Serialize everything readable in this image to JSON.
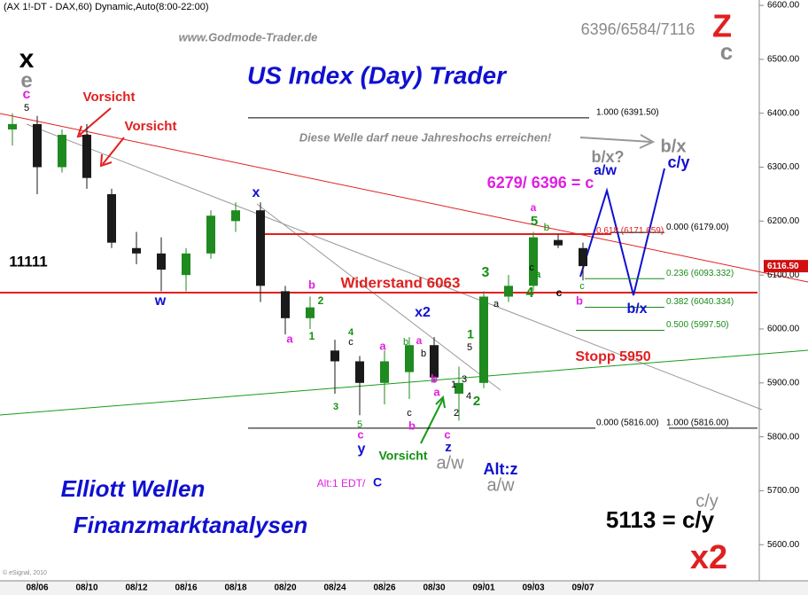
{
  "chart_data": {
    "type": "candlestick",
    "title": "(AX 1!-DT - DAX,60) Dynamic,Auto(8:00-22:00)",
    "x": [
      null,
      "08/06",
      null,
      "08/10",
      null,
      "08/12",
      null,
      "08/16",
      null,
      "08/18",
      null,
      "08/20",
      null,
      "08/24",
      null,
      "08/26",
      null,
      "08/30",
      null,
      "09/01",
      null,
      "09/03",
      null,
      "09/07"
    ],
    "open": [
      6370,
      6380,
      6300,
      6360,
      6250,
      6150,
      6140,
      6100,
      6140,
      6200,
      6220,
      6070,
      6020,
      5960,
      5940,
      5900,
      5920,
      5970,
      5880,
      5900,
      6060,
      6080,
      6165,
      6150
    ],
    "high": [
      6400,
      6395,
      6370,
      6380,
      6260,
      6180,
      6170,
      6150,
      6220,
      6235,
      6235,
      6080,
      6060,
      5980,
      5950,
      5960,
      5985,
      5985,
      5930,
      6070,
      6100,
      6180,
      6175,
      6160
    ],
    "low": [
      6340,
      6250,
      6290,
      6260,
      6150,
      6120,
      6070,
      6070,
      6130,
      6180,
      6050,
      5990,
      6000,
      5880,
      5840,
      5860,
      5870,
      5900,
      5830,
      5890,
      6050,
      6070,
      6150,
      6090
    ],
    "close": [
      6380,
      6300,
      6360,
      6280,
      6160,
      6140,
      6110,
      6140,
      6210,
      6220,
      6080,
      6020,
      6040,
      5940,
      5900,
      5940,
      5970,
      5910,
      5900,
      6060,
      6080,
      6170,
      6155,
      6116.5
    ],
    "up_color": "#1f8a1f",
    "down_color": "#1a1a1a",
    "ylim": [
      5533,
      6610
    ],
    "yticks": [
      {
        "value": 5600,
        "label": "5600.00"
      },
      {
        "value": 5700,
        "label": "5700.00"
      },
      {
        "value": 5800,
        "label": "5800.00"
      },
      {
        "value": 5900,
        "label": "5900.00"
      },
      {
        "value": 6000,
        "label": "6000.00"
      },
      {
        "value": 6100,
        "label": "6100.00"
      },
      {
        "value": 6200,
        "label": "6200.00"
      },
      {
        "value": 6300,
        "label": "6300.00"
      },
      {
        "value": 6400,
        "label": "6400.00"
      },
      {
        "value": 6500,
        "label": "6500.00"
      },
      {
        "value": 6600,
        "label": "6600.00"
      }
    ],
    "last_price": {
      "value": 6116.5,
      "label": "6116.50"
    },
    "fib_levels": [
      {
        "value": 6391.5,
        "label": "1.000 (6391.50)",
        "color": "#000000"
      },
      {
        "value": 6179,
        "label": "0.000 (6179.00)",
        "color": "#000000"
      },
      {
        "value": 6171.659,
        "label": "0.618 (6171.659)",
        "color": "#e02020"
      },
      {
        "value": 6093.332,
        "label": "0.236 (6093.332)",
        "color": "#1a8a1a"
      },
      {
        "value": 6040.334,
        "label": "0.382 (6040.334)",
        "color": "#1a8a1a"
      },
      {
        "value": 5997.5,
        "label": "0.500 (5997.50)",
        "color": "#1a8a1a"
      },
      {
        "value": 5816,
        "label": "0.000 (5816.00)",
        "color": "#000000"
      },
      {
        "value": 5816,
        "label": "1.000 (5816.00)",
        "color": "#000000"
      }
    ],
    "annotations": [
      {
        "text": "x",
        "color": "#000000"
      },
      {
        "text": "e",
        "color": "#8a8a8a"
      },
      {
        "text": "c",
        "color": "#e020e0"
      },
      {
        "text": "5",
        "color": "#000000"
      },
      {
        "text": "Vorsicht",
        "color": "#e02020"
      },
      {
        "text": "Vorsicht",
        "color": "#e02020"
      },
      {
        "text": "Diese Welle darf neue Jahreshochs  erreichen!",
        "color": "#8a8a8a"
      },
      {
        "text": "b/x",
        "color": "#8a8a8a"
      },
      {
        "text": "b/x?",
        "color": "#8a8a8a"
      },
      {
        "text": "a/w",
        "color": "#1010d0"
      },
      {
        "text": "c/y",
        "color": "#1010d0"
      },
      {
        "text": "6279/ 6396 = c",
        "color": "#e020e0"
      },
      {
        "text": "x",
        "color": "#1010d0"
      },
      {
        "text": "11111",
        "color": "#000000"
      },
      {
        "text": "w",
        "color": "#1010d0"
      },
      {
        "text": "Widerstand 6063",
        "color": "#e02020"
      },
      {
        "text": "b",
        "color": "#e020e0"
      },
      {
        "text": "2",
        "color": "#129012"
      },
      {
        "text": "a",
        "color": "#e020e0"
      },
      {
        "text": "1",
        "color": "#129012"
      },
      {
        "text": "3",
        "color": "#129012"
      },
      {
        "text": "4",
        "color": "#129012"
      },
      {
        "text": "5",
        "color": "#129012"
      },
      {
        "text": "a",
        "color": "#e020e0"
      },
      {
        "text": "b",
        "color": "#129012"
      },
      {
        "text": "c",
        "color": "#000000"
      },
      {
        "text": "a",
        "color": "#129012"
      },
      {
        "text": "c",
        "color": "#000000"
      },
      {
        "text": "c",
        "color": "#129012"
      },
      {
        "text": "b",
        "color": "#e020e0"
      },
      {
        "text": "b/x",
        "color": "#1010d0"
      },
      {
        "text": "x2",
        "color": "#1010d0"
      },
      {
        "text": "Stopp 5950",
        "color": "#e02020"
      },
      {
        "text": "a",
        "color": "#000000"
      },
      {
        "text": "4",
        "color": "#129012"
      },
      {
        "text": "c",
        "color": "#000000"
      },
      {
        "text": "a",
        "color": "#e020e0"
      },
      {
        "text": "b",
        "color": "#129012"
      },
      {
        "text": "a",
        "color": "#e020e0"
      },
      {
        "text": "b",
        "color": "#000000"
      },
      {
        "text": "5",
        "color": "#000000"
      },
      {
        "text": "1",
        "color": "#129012"
      },
      {
        "text": "3",
        "color": "#000000"
      },
      {
        "text": "1",
        "color": "#000000"
      },
      {
        "text": "a",
        "color": "#e020e0"
      },
      {
        "text": "b",
        "color": "#e020e0"
      },
      {
        "text": "4",
        "color": "#000000"
      },
      {
        "text": "2",
        "color": "#129012"
      },
      {
        "text": "3",
        "color": "#129012"
      },
      {
        "text": "c",
        "color": "#000000"
      },
      {
        "text": "b",
        "color": "#e020e0"
      },
      {
        "text": "5",
        "color": "#129012"
      },
      {
        "text": "c",
        "color": "#e020e0"
      },
      {
        "text": "y",
        "color": "#1010d0"
      },
      {
        "text": "z",
        "color": "#1010d0"
      },
      {
        "text": "c",
        "color": "#e020e0"
      },
      {
        "text": "2",
        "color": "#000000"
      },
      {
        "text": "Vorsicht",
        "color": "#129012"
      },
      {
        "text": "a/w",
        "color": "#8a8a8a"
      },
      {
        "text": "Alt:z",
        "color": "#1010d0"
      },
      {
        "text": "a/w",
        "color": "#8a8a8a"
      },
      {
        "text": "Alt:1 EDT/",
        "color": "#e020e0"
      },
      {
        "text": "C",
        "color": "#1010d0"
      },
      {
        "text": "Elliott Wellen",
        "color": "#1010d0"
      },
      {
        "text": "Finanzmarktanalysen",
        "color": "#1010d0"
      },
      {
        "text": "c/y",
        "color": "#8a8a8a"
      },
      {
        "text": "5113 = c/y",
        "color": "#000000"
      },
      {
        "text": "x2",
        "color": "#e02020"
      },
      {
        "text": "Z",
        "color": "#e02020"
      },
      {
        "text": "c",
        "color": "#8a8a8a"
      },
      {
        "text": "6396/6584/7116",
        "color": "#8a8a8a"
      },
      {
        "text": "US Index (Day) Trader",
        "color": "#1010d0"
      },
      {
        "text": "www.Godmode-Trader.de",
        "color": "#8a8a8a"
      },
      {
        "text": "© eSignal, 2010",
        "color": "#8a8a8a"
      }
    ]
  }
}
